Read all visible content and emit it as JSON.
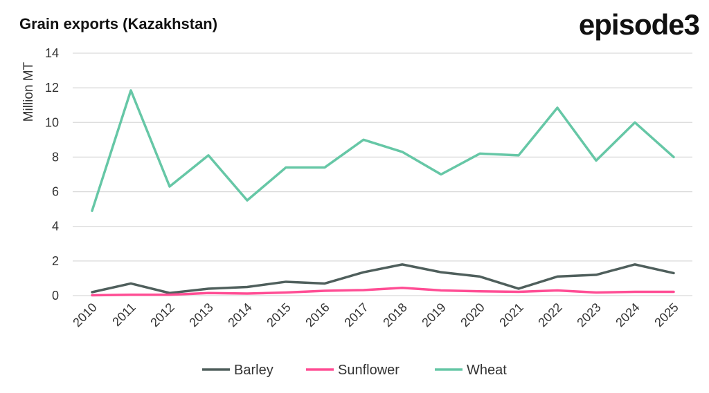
{
  "chart_data": {
    "type": "line",
    "title": "Grain exports (Kazakhstan)",
    "ylabel": "Million MT",
    "xlabel": "",
    "ylim": [
      0,
      14
    ],
    "yticks": [
      "0",
      "2",
      "4",
      "6",
      "8",
      "10",
      "12",
      "14"
    ],
    "grid": true,
    "legend": "bottom",
    "categories": [
      "2010",
      "2011",
      "2012",
      "2013",
      "2014",
      "2015",
      "2016",
      "2017",
      "2018",
      "2019",
      "2020",
      "2021",
      "2022",
      "2023",
      "2024",
      "2025"
    ],
    "series": [
      {
        "name": "Barley",
        "color": "#4f5f5c",
        "values": [
          0.2,
          0.7,
          0.15,
          0.4,
          0.5,
          0.8,
          0.7,
          1.35,
          1.8,
          1.35,
          1.1,
          0.4,
          1.1,
          1.2,
          1.8,
          1.3
        ]
      },
      {
        "name": "Sunflower",
        "color": "#ff4d94",
        "values": [
          0.02,
          0.05,
          0.05,
          0.15,
          0.12,
          0.18,
          0.28,
          0.32,
          0.45,
          0.3,
          0.25,
          0.22,
          0.3,
          0.18,
          0.22,
          0.22
        ]
      },
      {
        "name": "Wheat",
        "color": "#66c7a6",
        "values": [
          4.9,
          11.85,
          6.3,
          8.1,
          5.5,
          7.4,
          7.4,
          9.0,
          8.3,
          7.0,
          8.2,
          8.1,
          10.85,
          7.8,
          10.0,
          8.0
        ]
      }
    ]
  },
  "logo": "episode3"
}
